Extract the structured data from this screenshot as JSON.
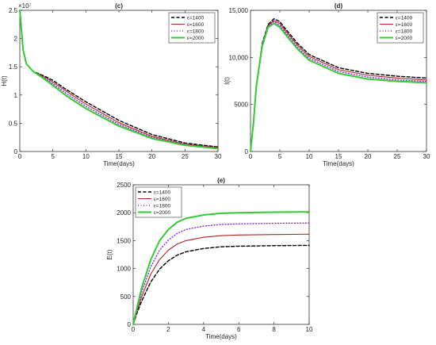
{
  "chart_data": [
    {
      "id": "c",
      "type": "line",
      "title": "(c)",
      "xlabel": "Time(days)",
      "ylabel": "H(t)",
      "exponent_label": "×10⁷",
      "xlim": [
        0,
        30
      ],
      "ylim": [
        0,
        2.5
      ],
      "xticks": [
        "0",
        "5",
        "10",
        "15",
        "20",
        "25",
        "30"
      ],
      "yticks": [
        "0",
        "0.5",
        "1",
        "1.5",
        "2",
        "2.5"
      ],
      "legend": "top-right",
      "grid": false,
      "series": [
        {
          "name": "ε=1400",
          "color": "#000000",
          "style": "dashed",
          "x": [
            0,
            0.5,
            1,
            2,
            3,
            4,
            5,
            7,
            10,
            15,
            20,
            25,
            30
          ],
          "y": [
            2.5,
            1.8,
            1.55,
            1.42,
            1.37,
            1.32,
            1.26,
            1.1,
            0.88,
            0.55,
            0.3,
            0.15,
            0.08
          ]
        },
        {
          "name": "ε=1600",
          "color": "#b22222",
          "style": "solid",
          "x": [
            0,
            0.5,
            1,
            2,
            3,
            4,
            5,
            7,
            10,
            15,
            20,
            25,
            30
          ],
          "y": [
            2.5,
            1.8,
            1.55,
            1.42,
            1.36,
            1.3,
            1.23,
            1.07,
            0.84,
            0.51,
            0.27,
            0.13,
            0.07
          ]
        },
        {
          "name": "ε=1800",
          "color": "#8a2be2",
          "style": "dotted",
          "x": [
            0,
            0.5,
            1,
            2,
            3,
            4,
            5,
            7,
            10,
            15,
            20,
            25,
            30
          ],
          "y": [
            2.5,
            1.8,
            1.55,
            1.42,
            1.35,
            1.28,
            1.2,
            1.03,
            0.8,
            0.48,
            0.25,
            0.12,
            0.06
          ]
        },
        {
          "name": "ε=2000",
          "color": "#33cc33",
          "style": "solid-thick",
          "x": [
            0,
            0.5,
            1,
            2,
            3,
            4,
            5,
            7,
            10,
            15,
            20,
            25,
            30
          ],
          "y": [
            2.5,
            1.8,
            1.55,
            1.42,
            1.34,
            1.26,
            1.17,
            0.99,
            0.76,
            0.45,
            0.23,
            0.11,
            0.05
          ]
        }
      ]
    },
    {
      "id": "d",
      "type": "line",
      "title": "(d)",
      "xlabel": "Time(days)",
      "ylabel": "I(t)",
      "xlim": [
        0,
        30
      ],
      "ylim": [
        0,
        15000
      ],
      "xticks": [
        "0",
        "5",
        "10",
        "15",
        "20",
        "25",
        "30"
      ],
      "yticks": [
        "0",
        "5000",
        "10,000",
        "15,000"
      ],
      "legend": "top-right",
      "grid": false,
      "series": [
        {
          "name": "ε=1400",
          "color": "#000000",
          "style": "dashed",
          "x": [
            0,
            0.5,
            1,
            2,
            3,
            4,
            5,
            6,
            8,
            10,
            15,
            20,
            25,
            30
          ],
          "y": [
            0,
            3000,
            7000,
            11500,
            13500,
            14100,
            13800,
            13000,
            11500,
            10300,
            8900,
            8300,
            8000,
            7800
          ]
        },
        {
          "name": "ε=1600",
          "color": "#b22222",
          "style": "solid",
          "x": [
            0,
            0.5,
            1,
            2,
            3,
            4,
            5,
            6,
            8,
            10,
            15,
            20,
            25,
            30
          ],
          "y": [
            0,
            3000,
            7000,
            11400,
            13400,
            13900,
            13600,
            12800,
            11300,
            10100,
            8700,
            8100,
            7800,
            7600
          ]
        },
        {
          "name": "ε=1800",
          "color": "#8a2be2",
          "style": "dotted",
          "x": [
            0,
            0.5,
            1,
            2,
            3,
            4,
            5,
            6,
            8,
            10,
            15,
            20,
            25,
            30
          ],
          "y": [
            0,
            3000,
            7000,
            11300,
            13300,
            13800,
            13400,
            12600,
            11100,
            9900,
            8500,
            7900,
            7600,
            7450
          ]
        },
        {
          "name": "ε=2000",
          "color": "#33cc33",
          "style": "solid-thick",
          "x": [
            0,
            0.5,
            1,
            2,
            3,
            4,
            5,
            6,
            8,
            10,
            15,
            20,
            25,
            30
          ],
          "y": [
            0,
            3000,
            7000,
            11200,
            13200,
            13600,
            13200,
            12400,
            10900,
            9700,
            8300,
            7700,
            7450,
            7300
          ]
        }
      ]
    },
    {
      "id": "e",
      "type": "line",
      "title": "(e)",
      "xlabel": "Time(days)",
      "ylabel": "E(t)",
      "xlim": [
        0,
        10
      ],
      "ylim": [
        0,
        2500
      ],
      "xticks": [
        "0",
        "2",
        "4",
        "6",
        "8",
        "10"
      ],
      "yticks": [
        "0",
        "500",
        "1000",
        "1500",
        "2000",
        "2500"
      ],
      "legend": "top-left",
      "grid": false,
      "series": [
        {
          "name": "ε=1400",
          "color": "#000000",
          "style": "dashed",
          "x": [
            0,
            0.25,
            0.5,
            1,
            1.5,
            2,
            2.5,
            3,
            4,
            5,
            6,
            8,
            10
          ],
          "y": [
            0,
            230,
            430,
            760,
            990,
            1140,
            1240,
            1300,
            1360,
            1390,
            1400,
            1410,
            1415
          ]
        },
        {
          "name": "ε=1600",
          "color": "#b22222",
          "style": "solid",
          "x": [
            0,
            0.25,
            0.5,
            1,
            1.5,
            2,
            2.5,
            3,
            4,
            5,
            6,
            8,
            10
          ],
          "y": [
            0,
            270,
            510,
            900,
            1160,
            1330,
            1440,
            1500,
            1560,
            1590,
            1600,
            1610,
            1615
          ]
        },
        {
          "name": "ε=1800",
          "color": "#8a2be2",
          "style": "dotted",
          "x": [
            0,
            0.25,
            0.5,
            1,
            1.5,
            2,
            2.5,
            3,
            4,
            5,
            6,
            8,
            10
          ],
          "y": [
            0,
            310,
            590,
            1030,
            1330,
            1510,
            1630,
            1700,
            1760,
            1790,
            1800,
            1810,
            1815
          ]
        },
        {
          "name": "ε=2000",
          "color": "#33cc33",
          "style": "solid-thick",
          "x": [
            0,
            0.25,
            0.5,
            1,
            1.5,
            2,
            2.5,
            3,
            4,
            5,
            6,
            8,
            10
          ],
          "y": [
            0,
            350,
            670,
            1160,
            1500,
            1700,
            1830,
            1900,
            1960,
            1990,
            2000,
            2010,
            2015
          ]
        }
      ]
    }
  ]
}
